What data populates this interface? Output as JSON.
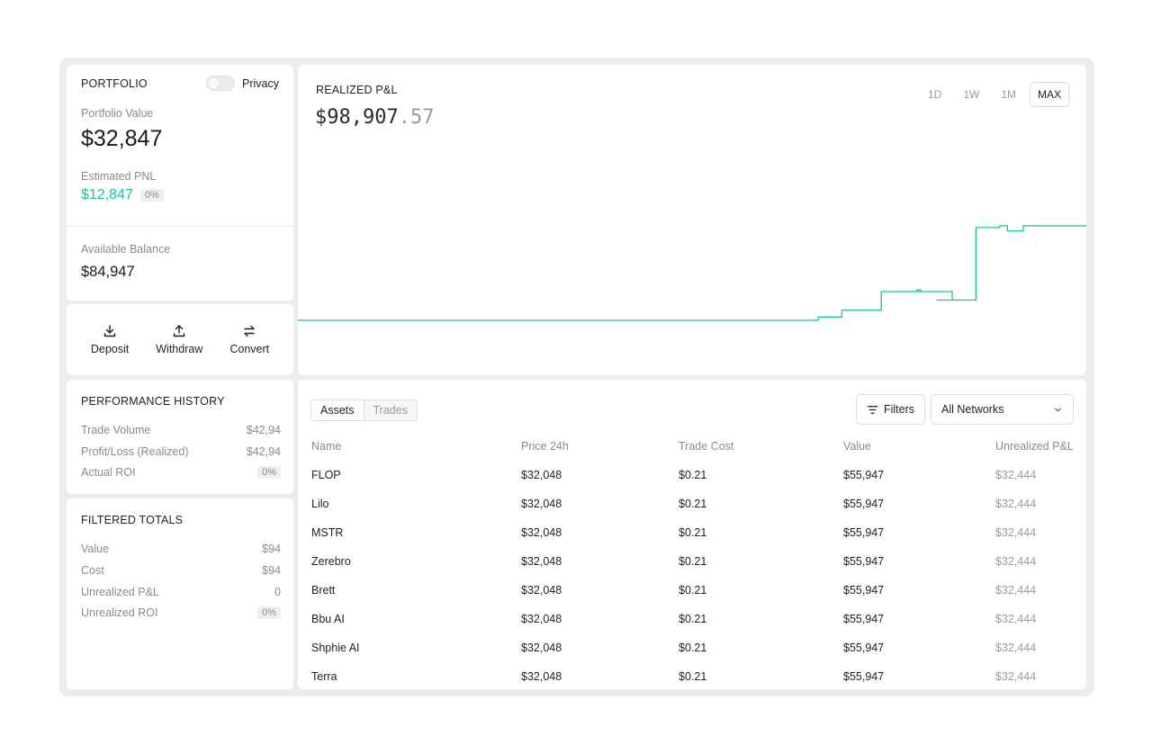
{
  "portfolio": {
    "title": "PORTFOLIO",
    "privacy_label": "Privacy",
    "portfolio_value_label": "Portfolio Value",
    "portfolio_value": "$32,847",
    "estimated_pnl_label": "Estimated PNL",
    "estimated_pnl": "$12,847",
    "estimated_pnl_pct": "0%",
    "available_balance_label": "Available Balance",
    "available_balance": "$84,947"
  },
  "actions": [
    {
      "label": "Deposit",
      "icon": "download-icon"
    },
    {
      "label": "Withdraw",
      "icon": "upload-icon"
    },
    {
      "label": "Convert",
      "icon": "swap-icon"
    }
  ],
  "performance": {
    "title": "PERFORMANCE HISTORY",
    "rows": [
      {
        "label": "Trade Volume",
        "value": "$42,94"
      },
      {
        "label": "Profit/Loss (Realized)",
        "value": "$42,94"
      },
      {
        "label": "Actual ROI",
        "value": "0%"
      }
    ]
  },
  "filtered_totals": {
    "title": "FILTERED TOTALS",
    "rows": [
      {
        "label": "Value",
        "value": "$94"
      },
      {
        "label": "Cost",
        "value": "$94"
      },
      {
        "label": "Unrealized P&L",
        "value": "0"
      },
      {
        "label": "Unrealized ROI",
        "value": "0%"
      }
    ]
  },
  "realized": {
    "title": "REALIZED P&L",
    "value_main": "$98,907",
    "value_decimal": ".57",
    "ranges": [
      "1D",
      "1W",
      "1M",
      "MAX"
    ],
    "active_range": "MAX",
    "line_color": "#1fbf98"
  },
  "chart_data": {
    "type": "line",
    "step": true,
    "x": [
      0,
      0.66,
      0.69,
      0.74,
      0.79,
      0.785,
      0.82,
      0.83,
      0.81,
      0.86,
      0.82,
      0.86,
      0.87,
      0.89,
      0.9,
      0.92,
      1.0
    ],
    "y": [
      0,
      2,
      6,
      17,
      18,
      17,
      17,
      12,
      12,
      12,
      12,
      55,
      55,
      56,
      53,
      56,
      56
    ],
    "xlabel": "",
    "ylabel": ""
  },
  "table": {
    "tabs": [
      "Assets",
      "Trades"
    ],
    "active_tab": "Assets",
    "filters_label": "Filters",
    "network_selected": "All Networks",
    "columns": [
      "Name",
      "Price 24h",
      "Trade Cost",
      "Value",
      "Unrealized P&L"
    ],
    "rows": [
      [
        "FLOP",
        "$32,048",
        "$0.21",
        "$55,947",
        "$32,444"
      ],
      [
        "Lilo",
        "$32,048",
        "$0.21",
        "$55,947",
        "$32,444"
      ],
      [
        "MSTR",
        "$32,048",
        "$0.21",
        "$55,947",
        "$32,444"
      ],
      [
        "Zerebro",
        "$32,048",
        "$0.21",
        "$55,947",
        "$32,444"
      ],
      [
        "Brett",
        "$32,048",
        "$0.21",
        "$55,947",
        "$32,444"
      ],
      [
        "Bbu AI",
        "$32,048",
        "$0.21",
        "$55,947",
        "$32,444"
      ],
      [
        "Shphie AI",
        "$32,048",
        "$0.21",
        "$55,947",
        "$32,444"
      ],
      [
        "Terra",
        "$32,048",
        "$0.21",
        "$55,947",
        "$32,444"
      ]
    ]
  }
}
